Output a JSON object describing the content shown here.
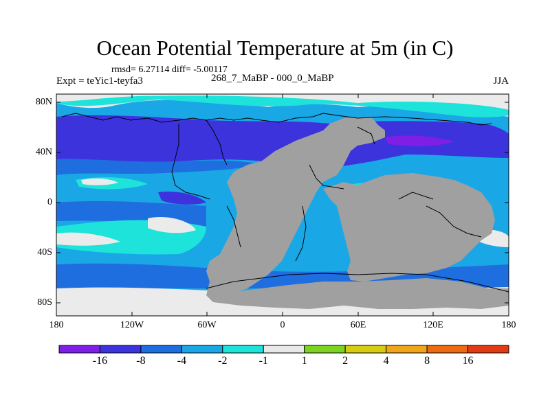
{
  "title": "Ocean Potential Temperature at 5m (in C)",
  "stats": "rmsd= 6.27114 diff= -5.00117",
  "experiment": "Expt = teYic1-teyfa3",
  "difference_label": "268_7_MaBP - 000_0_MaBP",
  "season": "JJA",
  "y_axis_labels": [
    "80N",
    "40N",
    "0",
    "40S",
    "80S"
  ],
  "x_axis_labels": [
    "180",
    "120W",
    "60W",
    "0",
    "60E",
    "120E",
    "180"
  ],
  "colorbar": {
    "labels": [
      "-16",
      "-8",
      "-4",
      "-2",
      "-1",
      "1",
      "2",
      "4",
      "8",
      "16"
    ],
    "colors": [
      "#7f1fe6",
      "#3c33dd",
      "#1f6ee0",
      "#19a7e6",
      "#1ee3da",
      "#e8e8e8",
      "#7ed321",
      "#d7cc12",
      "#f0a61a",
      "#eb6a12",
      "#e23a15"
    ]
  },
  "land_color": "#a0a0a0",
  "missing_color": "#ebebeb"
}
